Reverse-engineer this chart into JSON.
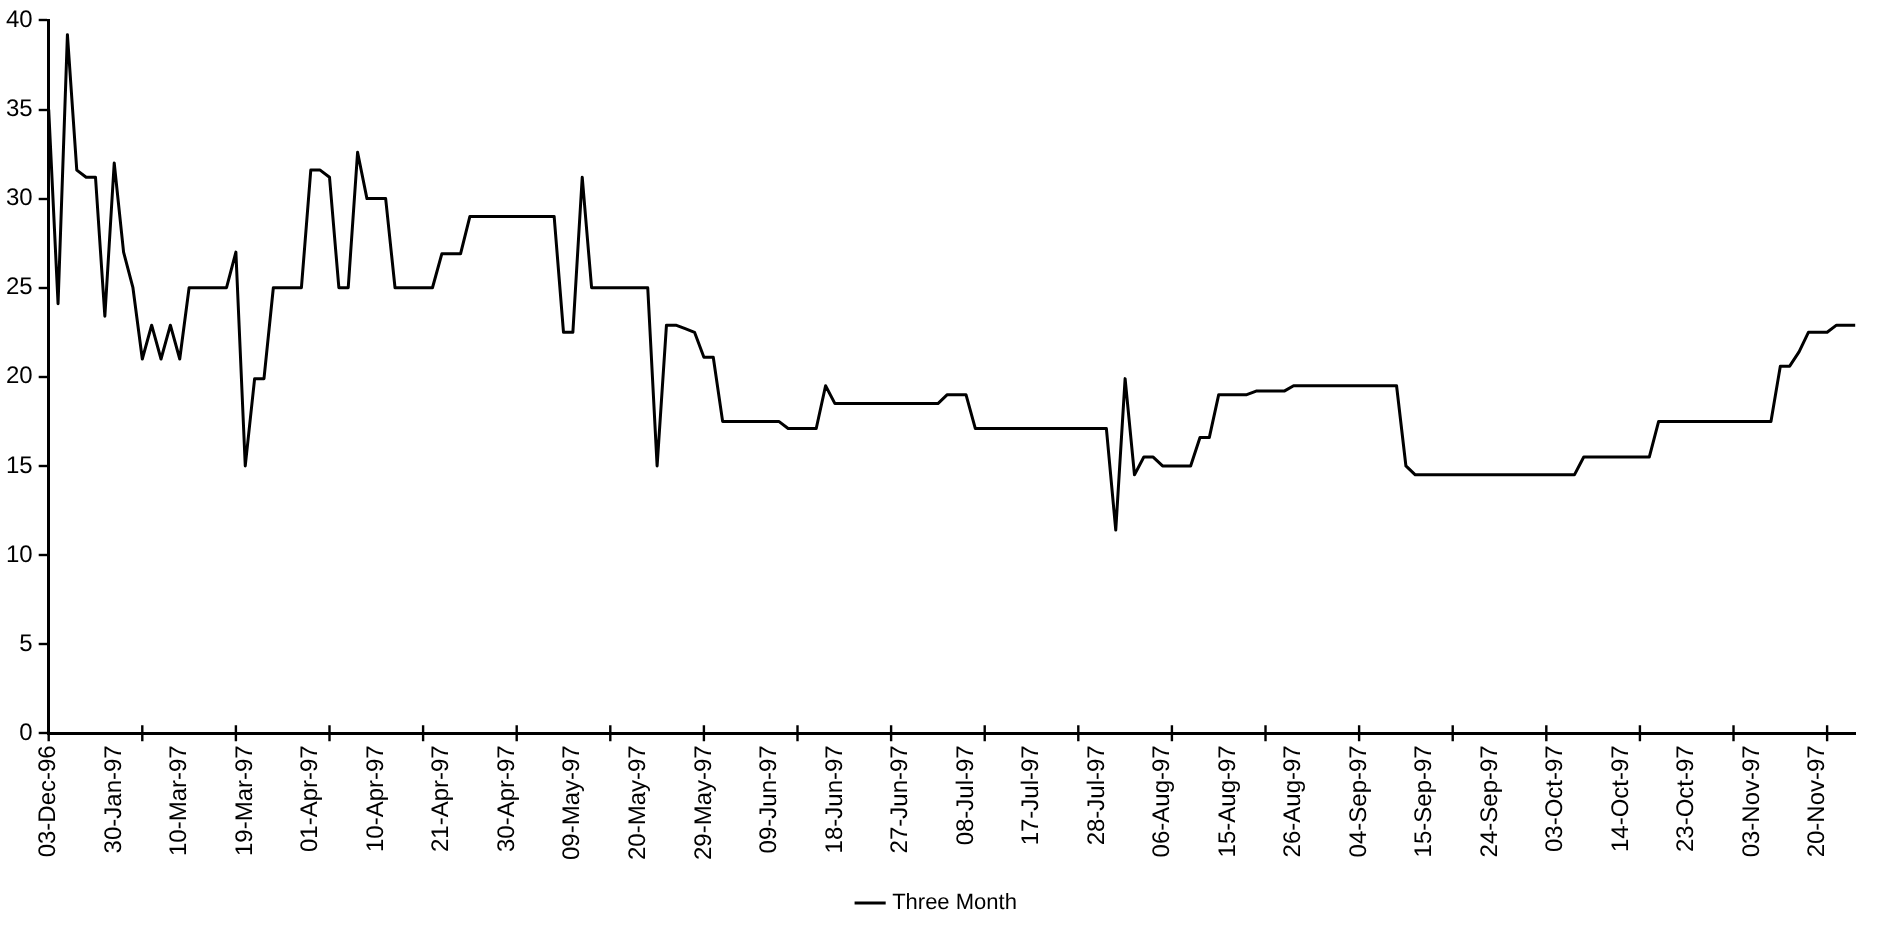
{
  "chart_data": {
    "type": "line",
    "categories": [
      "03-Dec-96",
      null,
      null,
      null,
      null,
      null,
      null,
      "30-Jan-97",
      null,
      null,
      null,
      null,
      null,
      null,
      "10-Mar-97",
      null,
      null,
      null,
      null,
      null,
      null,
      "19-Mar-97",
      null,
      null,
      null,
      null,
      null,
      null,
      "01-Apr-97",
      null,
      null,
      null,
      null,
      null,
      null,
      "10-Apr-97",
      null,
      null,
      null,
      null,
      null,
      null,
      "21-Apr-97",
      null,
      null,
      null,
      null,
      null,
      null,
      "30-Apr-97",
      null,
      null,
      null,
      null,
      null,
      null,
      "09-May-97",
      null,
      null,
      null,
      null,
      null,
      null,
      "20-May-97",
      null,
      null,
      null,
      null,
      null,
      null,
      "29-May-97",
      null,
      null,
      null,
      null,
      null,
      null,
      "09-Jun-97",
      null,
      null,
      null,
      null,
      null,
      null,
      "18-Jun-97",
      null,
      null,
      null,
      null,
      null,
      null,
      "27-Jun-97",
      null,
      null,
      null,
      null,
      null,
      null,
      "08-Jul-97",
      null,
      null,
      null,
      null,
      null,
      null,
      "17-Jul-97",
      null,
      null,
      null,
      null,
      null,
      null,
      "28-Jul-97",
      null,
      null,
      null,
      null,
      null,
      null,
      "06-Aug-97",
      null,
      null,
      null,
      null,
      null,
      null,
      "15-Aug-97",
      null,
      null,
      null,
      null,
      null,
      null,
      "26-Aug-97",
      null,
      null,
      null,
      null,
      null,
      null,
      "04-Sep-97",
      null,
      null,
      null,
      null,
      null,
      null,
      "15-Sep-97",
      null,
      null,
      null,
      null,
      null,
      null,
      "24-Sep-97",
      null,
      null,
      null,
      null,
      null,
      null,
      "03-Oct-97",
      null,
      null,
      null,
      null,
      null,
      null,
      "14-Oct-97",
      null,
      null,
      null,
      null,
      null,
      null,
      "23-Oct-97",
      null,
      null,
      null,
      null,
      null,
      null,
      "03-Nov-97",
      null,
      null,
      null,
      null,
      null,
      null,
      "20-Nov-97",
      null,
      null,
      null,
      null
    ],
    "series": [
      {
        "name": "Three Month",
        "color": "#000000",
        "values": [
          35,
          24.1,
          39.2,
          31.6,
          31.2,
          31.2,
          23.4,
          32,
          27,
          25,
          21,
          22.9,
          21,
          22.9,
          21,
          25,
          25,
          25,
          25,
          25,
          27,
          15,
          19.9,
          19.9,
          25,
          25,
          25,
          25,
          31.6,
          31.6,
          31.2,
          25,
          25,
          32.6,
          30,
          30,
          30,
          25,
          25,
          25,
          25,
          25,
          26.9,
          26.9,
          26.9,
          29,
          29,
          29,
          29,
          29,
          29,
          29,
          29,
          29,
          29,
          22.5,
          22.5,
          31.2,
          25,
          25,
          25,
          25,
          25,
          25,
          25,
          15,
          22.9,
          22.9,
          22.7,
          22.5,
          21.1,
          21.1,
          17.5,
          17.5,
          17.5,
          17.5,
          17.5,
          17.5,
          17.5,
          17.1,
          17.1,
          17.1,
          17.1,
          19.5,
          18.5,
          18.5,
          18.5,
          18.5,
          18.5,
          18.5,
          18.5,
          18.5,
          18.5,
          18.5,
          18.5,
          18.5,
          19,
          19,
          19,
          17.1,
          17.1,
          17.1,
          17.1,
          17.1,
          17.1,
          17.1,
          17.1,
          17.1,
          17.1,
          17.1,
          17.1,
          17.1,
          17.1,
          17.1,
          11.4,
          19.9,
          14.5,
          15.5,
          15.5,
          15,
          15,
          15,
          15,
          16.6,
          16.6,
          19,
          19,
          19,
          19,
          19.2,
          19.2,
          19.2,
          19.2,
          19.5,
          19.5,
          19.5,
          19.5,
          19.5,
          19.5,
          19.5,
          19.5,
          19.5,
          19.5,
          19.5,
          19.5,
          15,
          14.5,
          14.5,
          14.5,
          14.5,
          14.5,
          14.5,
          14.5,
          14.5,
          14.5,
          14.5,
          14.5,
          14.5,
          14.5,
          14.5,
          14.5,
          14.5,
          14.5,
          14.5,
          15.5,
          15.5,
          15.5,
          15.5,
          15.5,
          15.5,
          15.5,
          15.5,
          17.5,
          17.5,
          17.5,
          17.5,
          17.5,
          17.5,
          17.5,
          17.5,
          17.5,
          17.5,
          17.5,
          17.5,
          17.5,
          20.6,
          20.6,
          21.4,
          22.5,
          22.5,
          22.5,
          22.9,
          22.9,
          22.9
        ]
      }
    ],
    "ylim": [
      0,
      40
    ],
    "yticks": [
      0,
      5,
      10,
      15,
      20,
      25,
      30,
      35,
      40
    ],
    "grid": false,
    "legend": "bottom",
    "marker": "none",
    "line_style": "solid"
  }
}
